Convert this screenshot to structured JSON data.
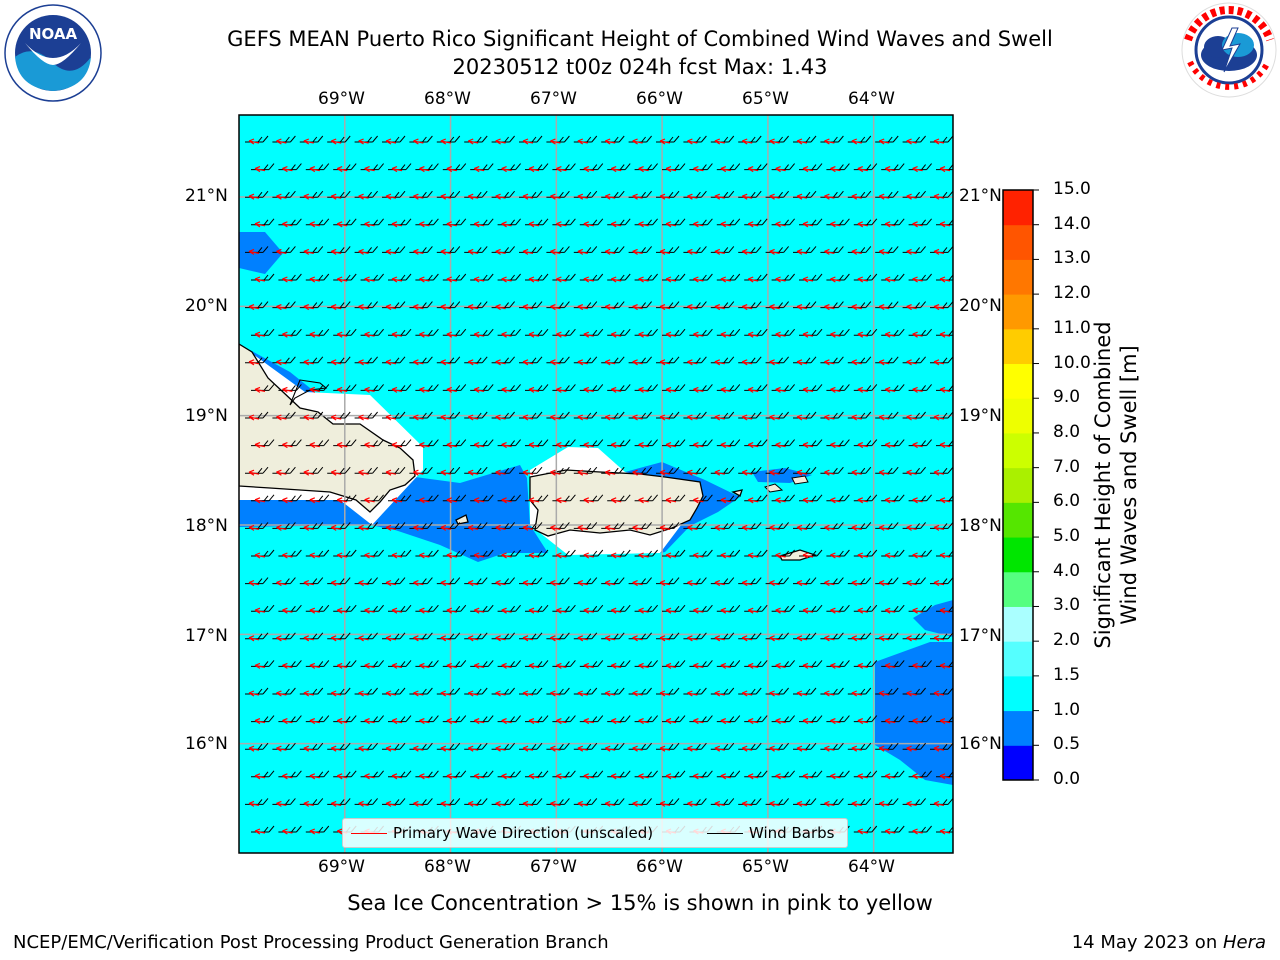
{
  "title": {
    "line1": "GEFS MEAN Puerto Rico Significant Height of Combined Wind Waves and Swell",
    "line2": "20230512 t00z 024h fcst   Max: 1.43"
  },
  "logos": {
    "left": {
      "icon": "noaa-logo",
      "text": "NOAA",
      "ring_text": "NATIONAL OCEANIC AND ATMOSPHERIC ADMINISTRATION · U.S. DEPARTMENT OF COMMERCE"
    },
    "right": {
      "icon": "nws-logo",
      "ring_text": "NATIONAL WEATHER SERVICE"
    }
  },
  "map": {
    "lon_labels": [
      "69°W",
      "68°W",
      "67°W",
      "66°W",
      "65°W",
      "64°W"
    ],
    "lat_labels": [
      "21°N",
      "20°N",
      "19°N",
      "18°N",
      "17°N",
      "16°N"
    ],
    "lon_range": [
      -70.0,
      -63.25
    ],
    "lat_range": [
      15.0,
      21.75
    ],
    "colors": {
      "ocean": "#00ffff",
      "shallow": "#0080ff",
      "land": "#efeedc",
      "gridline": "#aaaaaa",
      "wave_arrow": "#ff0000",
      "wind_barb": "#000000"
    }
  },
  "legend": {
    "items": [
      {
        "label": "Primary Wave Direction (unscaled)",
        "color": "#ff0000"
      },
      {
        "label": "Wind Barbs",
        "color": "#000000"
      }
    ]
  },
  "colorbar": {
    "label_line1": "Significant Height of Combined",
    "label_line2": "Wind Waves and Swell [m]",
    "ticks": [
      "0.0",
      "0.5",
      "1.0",
      "1.5",
      "2.0",
      "3.0",
      "4.0",
      "5.0",
      "6.0",
      "7.0",
      "8.0",
      "9.0",
      "10.0",
      "11.0",
      "12.0",
      "13.0",
      "14.0",
      "15.0"
    ],
    "colors": [
      "#0000ff",
      "#0080ff",
      "#00ffff",
      "#55ffff",
      "#aaffff",
      "#55ff80",
      "#00e600",
      "#55e600",
      "#aaf000",
      "#ccff00",
      "#eeff00",
      "#ffff00",
      "#ffcc00",
      "#ff9900",
      "#ff7700",
      "#ff5500",
      "#ff2200"
    ]
  },
  "note": "Sea Ice Concentration > 15% is shown in pink to yellow",
  "footer": {
    "left": "NCEP/EMC/Verification Post Processing Product Generation Branch",
    "right_date": "14 May 2023 on ",
    "right_host": "Hera"
  }
}
